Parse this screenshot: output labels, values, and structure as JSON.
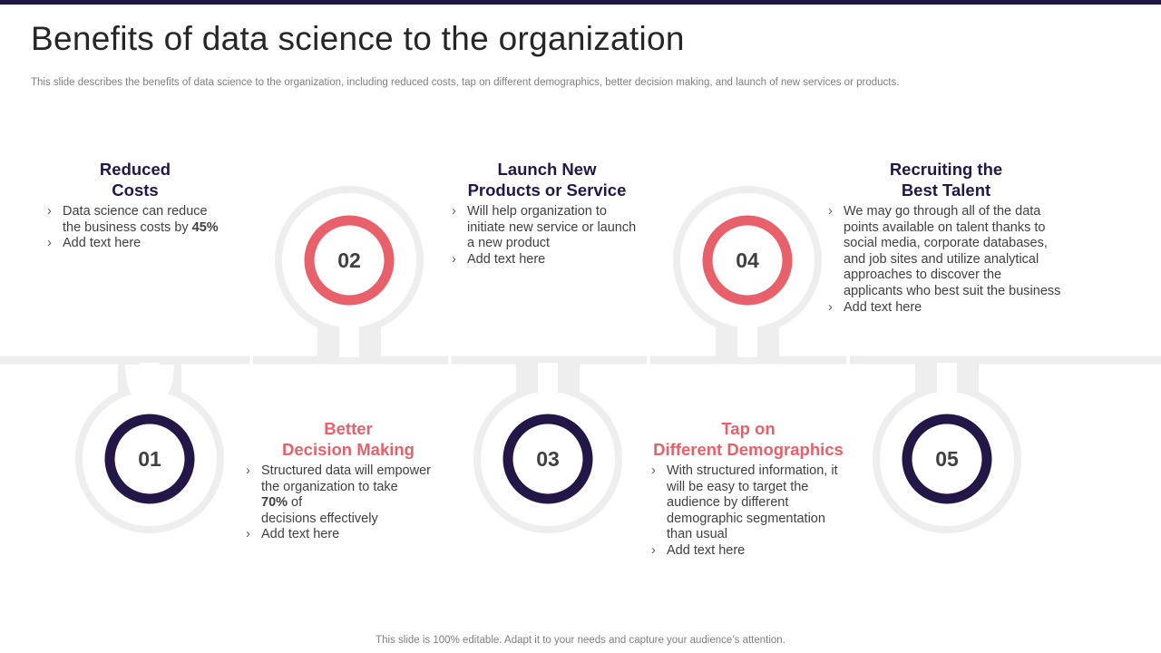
{
  "header": {
    "title": "Benefits of data science to the organization",
    "subtitle": "This slide describes the benefits of data science to the organization, including reduced costs, tap on different demographics, better decision making, and launch of new services or products."
  },
  "colors": {
    "primary": "#231747",
    "accent": "#e8606a",
    "ring": "#eeeeee",
    "text": "#404040"
  },
  "nodes": [
    {
      "number": "01"
    },
    {
      "number": "02"
    },
    {
      "number": "03"
    },
    {
      "number": "04"
    },
    {
      "number": "05"
    }
  ],
  "benefits": {
    "reduced_costs": {
      "title_line1": "Reduced",
      "title_line2": "Costs",
      "b1_line1": "Data science can reduce",
      "b1_line2_pre": "the business costs by ",
      "b1_highlight": "45%",
      "b2": "Add text here"
    },
    "new_products": {
      "title_line1": "Launch New",
      "title_line2": "Products or Service",
      "b1_line1": "Will help organization to",
      "b1_line2": "initiate new service or launch",
      "b1_line3": "a new product",
      "b2": "Add text here"
    },
    "best_talent": {
      "title_line1": "Recruiting the",
      "title_line2": "Best Talent",
      "b1_line1": "We may go through all of the data",
      "b1_line2": "points available on talent thanks to",
      "b1_line3": "social media, corporate databases,",
      "b1_line4": "and job sites and utilize analytical",
      "b1_line5": "approaches to discover the",
      "b1_line6": "applicants who best suit the business",
      "b2": "Add text here"
    },
    "decision_making": {
      "title_line1": "Better",
      "title_line2": "Decision Making",
      "b1_line1": "Structured data will empower",
      "b1_line2": "the organization to take",
      "b1_highlight": "70%",
      "b1_line3_post": " of",
      "b1_line4": "decisions effectively",
      "b2": "Add text here"
    },
    "demographics": {
      "title_line1": "Tap on",
      "title_line2": "Different Demographics",
      "b1_line1": "With structured information, it",
      "b1_line2": "will be easy to target the",
      "b1_line3": "audience by different",
      "b1_line4": "demographic segmentation",
      "b1_line5": "than usual",
      "b2": "Add text here"
    }
  },
  "footer": {
    "text": "This slide is 100% editable. Adapt it to your needs and capture your audience’s attention."
  }
}
